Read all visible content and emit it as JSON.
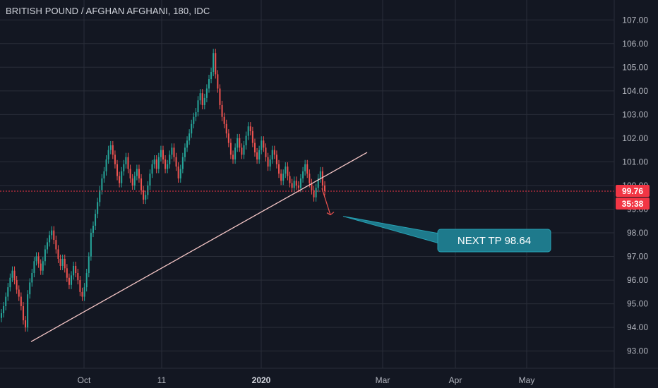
{
  "chart_data": {
    "type": "candlestick",
    "title": "BRITISH POUND / AFGHAN AFGHANI, 180, IDC",
    "ylim": [
      92.3,
      107.6
    ],
    "y_ticks": [
      "107.00",
      "106.00",
      "105.00",
      "104.00",
      "103.00",
      "102.00",
      "101.00",
      "100.00",
      "99.00",
      "98.00",
      "97.00",
      "96.00",
      "95.00",
      "94.00",
      "93.00"
    ],
    "x_ticks": [
      {
        "label": "Oct",
        "bold": false
      },
      {
        "label": "11",
        "bold": false
      },
      {
        "label": "2020",
        "bold": true
      },
      {
        "label": "Mar",
        "bold": false
      },
      {
        "label": "Apr",
        "bold": false
      },
      {
        "label": "May",
        "bold": false
      }
    ],
    "series": [
      {
        "values": [
          94.6,
          94.9,
          95.3,
          95.7,
          96.1,
          96.4,
          96.0,
          95.6,
          95.3,
          94.9,
          94.3,
          94.0,
          95.4,
          95.9,
          96.3,
          96.8,
          97.0,
          96.7,
          96.4,
          96.8,
          97.3,
          97.6,
          97.9,
          98.1,
          97.7,
          97.3,
          96.9,
          96.6,
          96.9,
          96.5,
          96.1,
          95.8,
          96.2,
          96.6,
          96.3,
          96.0,
          95.5,
          95.3,
          95.7,
          96.3,
          97.0,
          98.0,
          98.3,
          98.8,
          99.3,
          99.8,
          100.3,
          100.6,
          101.1,
          101.5,
          101.7,
          101.3,
          100.9,
          100.4,
          100.1,
          100.6,
          100.9,
          101.2,
          100.7,
          100.3,
          100.0,
          100.4,
          100.7,
          100.3,
          99.8,
          99.4,
          99.6,
          100.0,
          100.5,
          100.9,
          101.1,
          100.7,
          101.2,
          101.5,
          101.1,
          100.7,
          100.9,
          101.3,
          101.6,
          101.2,
          100.8,
          100.3,
          100.7,
          101.2,
          101.6,
          101.9,
          102.2,
          102.6,
          102.9,
          103.1,
          103.6,
          103.9,
          103.4,
          103.7,
          104.1,
          104.5,
          104.8,
          105.6,
          104.7,
          104.1,
          103.4,
          102.9,
          102.6,
          102.2,
          101.8,
          101.3,
          101.1,
          101.6,
          102.0,
          101.6,
          101.3,
          101.7,
          102.1,
          102.5,
          102.3,
          101.8,
          101.4,
          101.1,
          101.5,
          101.9,
          101.6,
          101.2,
          100.8,
          101.1,
          101.5,
          101.3,
          100.9,
          100.5,
          100.2,
          100.5,
          100.8,
          100.4,
          100.1,
          99.9,
          100.2,
          100.0,
          99.9,
          100.3,
          100.6,
          100.9,
          100.5,
          100.1,
          99.8,
          99.5,
          99.9,
          100.3,
          100.6,
          100.0,
          99.76
        ]
      }
    ],
    "current_price": "99.76",
    "countdown": "35:38",
    "trendline": {
      "from": {
        "date": "2019-09-21",
        "value": 93.4
      },
      "to": {
        "date": "2020-01-31",
        "value": 101.4
      }
    },
    "projection_target": 98.64,
    "annotation": "NEXT TP 98.64"
  },
  "colors": {
    "background": "#131722",
    "grid": "#2a2e39",
    "up": "#26a69a",
    "down": "#ef5350",
    "trendline": "#f5c6c6",
    "price_line": "#f23645",
    "callout": "#1e7a8c",
    "callout_border": "#27a2b4"
  }
}
